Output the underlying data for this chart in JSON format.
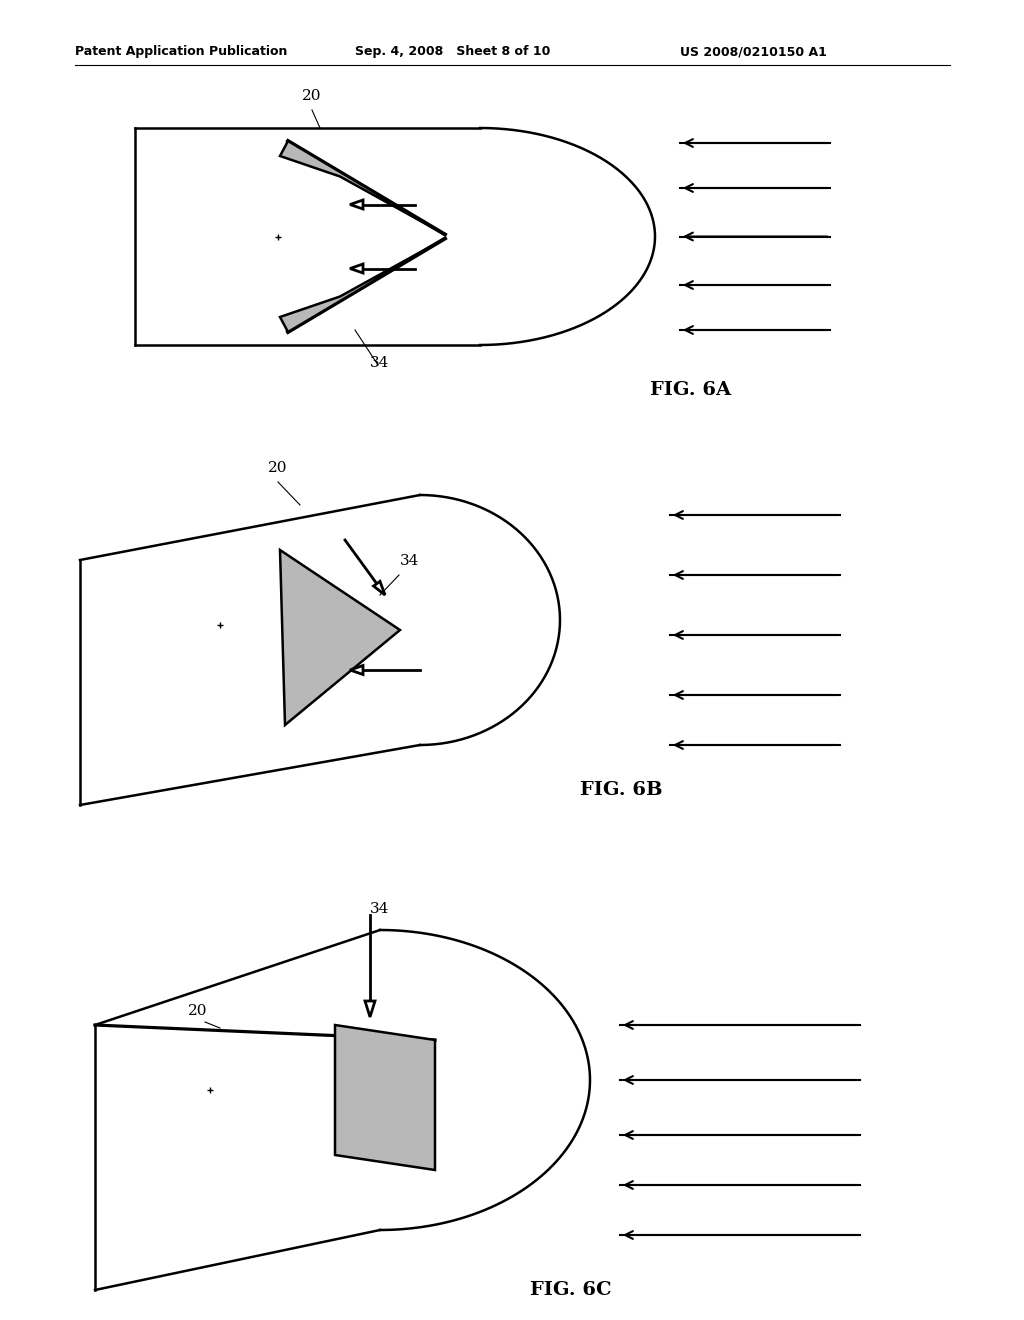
{
  "header_left": "Patent Application Publication",
  "header_mid": "Sep. 4, 2008   Sheet 8 of 10",
  "header_right": "US 2008/0210150 A1",
  "fig_labels": [
    "FIG. 6A",
    "FIG. 6B",
    "FIG. 6C"
  ],
  "background": "#ffffff",
  "line_color": "#000000",
  "fill_color": "#b8b8b8",
  "lw": 1.8
}
